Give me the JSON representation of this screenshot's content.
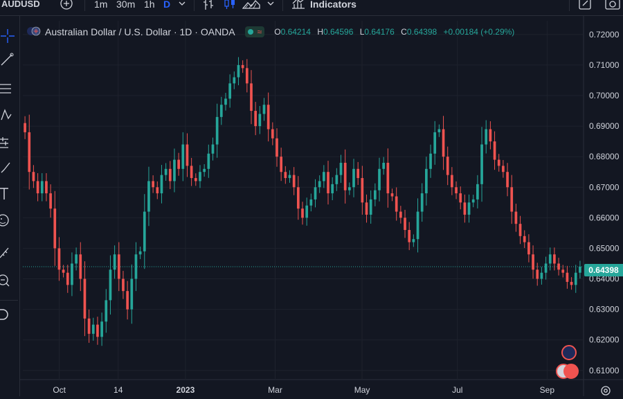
{
  "toolbar": {
    "symbol": "AUDUSD",
    "intervals": [
      "1m",
      "30m",
      "1h",
      "D"
    ],
    "indicators_label": "Indicators"
  },
  "legend": {
    "title": "Australian Dollar / U.S. Dollar · 1D · OANDA",
    "open_key": "O",
    "open": "0.64214",
    "high_key": "H",
    "high": "0.64596",
    "low_key": "L",
    "low": "0.64176",
    "close_key": "C",
    "close": "0.64398",
    "change": "+0.00184 (+0.29%)"
  },
  "price_tag": "0.64398",
  "colors": {
    "up": "#26a69a",
    "down": "#ef5350",
    "bg": "#131722",
    "grid": "#1e222d"
  },
  "chart_data": {
    "type": "candlestick",
    "y_ticks": [
      "0.72000",
      "0.71000",
      "0.70000",
      "0.69000",
      "0.68000",
      "0.67000",
      "0.66000",
      "0.65000",
      "0.64000",
      "0.63000",
      "0.62000",
      "0.61000"
    ],
    "x_ticks": [
      "Oct",
      "14",
      "2023",
      "Mar",
      "May",
      "Jul",
      "Sep"
    ],
    "ylim": [
      0.607,
      0.7245
    ],
    "last_price": 0.64398,
    "closes": [
      0.688,
      0.675,
      0.672,
      0.668,
      0.672,
      0.668,
      0.663,
      0.65,
      0.643,
      0.642,
      0.638,
      0.645,
      0.648,
      0.64,
      0.627,
      0.622,
      0.625,
      0.621,
      0.626,
      0.633,
      0.643,
      0.648,
      0.64,
      0.636,
      0.63,
      0.64,
      0.648,
      0.649,
      0.662,
      0.672,
      0.67,
      0.668,
      0.674,
      0.676,
      0.672,
      0.679,
      0.676,
      0.684,
      0.677,
      0.673,
      0.672,
      0.675,
      0.676,
      0.681,
      0.684,
      0.693,
      0.697,
      0.699,
      0.704,
      0.706,
      0.71,
      0.709,
      0.704,
      0.695,
      0.69,
      0.694,
      0.697,
      0.689,
      0.686,
      0.68,
      0.675,
      0.673,
      0.674,
      0.67,
      0.663,
      0.66,
      0.664,
      0.666,
      0.67,
      0.672,
      0.675,
      0.668,
      0.671,
      0.674,
      0.678,
      0.669,
      0.67,
      0.676,
      0.673,
      0.665,
      0.661,
      0.666,
      0.669,
      0.676,
      0.678,
      0.668,
      0.667,
      0.662,
      0.66,
      0.656,
      0.652,
      0.653,
      0.662,
      0.668,
      0.676,
      0.681,
      0.688,
      0.689,
      0.68,
      0.674,
      0.67,
      0.668,
      0.665,
      0.661,
      0.665,
      0.666,
      0.671,
      0.684,
      0.689,
      0.685,
      0.679,
      0.677,
      0.675,
      0.67,
      0.662,
      0.658,
      0.654,
      0.652,
      0.648,
      0.643,
      0.64,
      0.642,
      0.645,
      0.648,
      0.645,
      0.643,
      0.642,
      0.639,
      0.638,
      0.642,
      0.644
    ]
  }
}
